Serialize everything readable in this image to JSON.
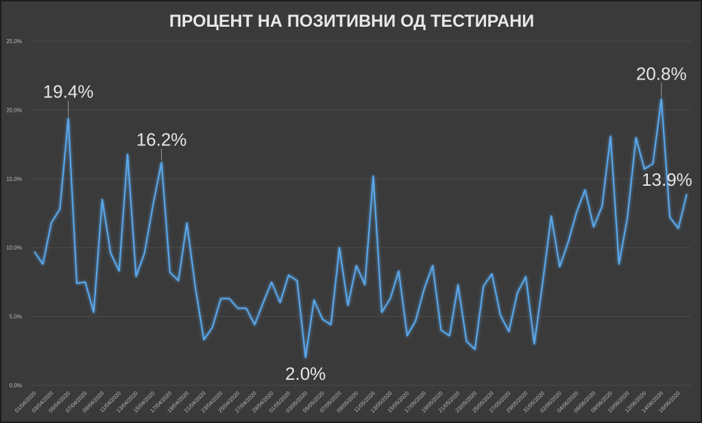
{
  "chart_data": {
    "type": "line",
    "title": "ПРОЦЕНТ НА ПОЗИТИВНИ ОД ТЕСТИРАНИ",
    "xlabel": "",
    "ylabel": "",
    "ylim": [
      0,
      25
    ],
    "yticks": [
      "0.0%",
      "5.0%",
      "10.0%",
      "15.0%",
      "20.0%",
      "25.0%"
    ],
    "grid": true,
    "line_color": "#5aa9ee",
    "x": [
      "01/04/2020",
      "02/04/2020",
      "03/04/2020",
      "04/04/2020",
      "05/04/2020",
      "06/04/2020",
      "07/04/2020",
      "08/04/2020",
      "09/04/2020",
      "10/04/2020",
      "11/04/2020",
      "12/04/2020",
      "13/04/2020",
      "14/04/2020",
      "15/04/2020",
      "16/04/2020",
      "17/04/2020",
      "18/04/2020",
      "19/04/2020",
      "20/04/2020",
      "21/04/2020",
      "22/04/2020",
      "23/04/2020",
      "24/04/2020",
      "25/04/2020",
      "26/04/2020",
      "27/04/2020",
      "28/04/2020",
      "29/04/2020",
      "30/04/2020",
      "01/05/2020",
      "02/05/2020",
      "03/05/2020",
      "04/05/2020",
      "05/05/2020",
      "06/05/2020",
      "07/05/2020",
      "08/05/2020",
      "09/05/2020",
      "10/05/2020",
      "11/05/2020",
      "12/05/2020",
      "13/05/2020",
      "14/05/2020",
      "15/05/2020",
      "16/05/2020",
      "17/05/2020",
      "18/05/2020",
      "19/05/2020",
      "20/05/2020",
      "21/05/2020",
      "22/05/2020",
      "23/05/2020",
      "24/05/2020",
      "25/05/2020",
      "26/05/2020",
      "27/05/2020",
      "28/05/2020",
      "29/05/2020",
      "30/05/2020",
      "31/05/2020",
      "01/06/2020",
      "02/06/2020",
      "03/06/2020",
      "04/06/2020",
      "05/06/2020",
      "06/06/2020",
      "07/06/2020",
      "08/06/2020",
      "09/06/2020",
      "10/06/2020",
      "11/06/2020",
      "12/06/2020",
      "13/06/2020",
      "14/06/2020",
      "15/06/2020",
      "16/06/2020",
      "17/06/2020"
    ],
    "xtick_labels": [
      "01/04/2020",
      "03/04/2020",
      "05/04/2020",
      "07/04/2020",
      "09/04/2020",
      "11/04/2020",
      "13/04/2020",
      "15/04/2020",
      "17/04/2020",
      "19/04/2020",
      "21/04/2020",
      "23/04/2020",
      "25/04/2020",
      "27/04/2020",
      "29/04/2020",
      "01/05/2020",
      "03/05/2020",
      "05/05/2020",
      "07/05/2020",
      "09/05/2020",
      "11/05/2020",
      "13/05/2020",
      "15/05/2020",
      "17/05/2020",
      "19/05/2020",
      "21/05/2020",
      "23/05/2020",
      "25/05/2020",
      "27/05/2020",
      "29/05/2020",
      "31/05/2020",
      "02/06/2020",
      "04/06/2020",
      "06/06/2020",
      "08/06/2020",
      "10/06/2020",
      "12/06/2020",
      "14/06/2020",
      "16/06/2020"
    ],
    "values": [
      9.7,
      8.8,
      11.8,
      12.8,
      19.4,
      7.4,
      7.5,
      5.3,
      13.5,
      9.6,
      8.3,
      16.8,
      7.9,
      9.6,
      13.1,
      16.2,
      8.2,
      7.6,
      11.8,
      7.1,
      3.3,
      4.2,
      6.3,
      6.3,
      5.6,
      5.6,
      4.4,
      6.0,
      7.5,
      6.0,
      8.0,
      7.6,
      2.0,
      6.2,
      4.8,
      4.4,
      10.0,
      5.8,
      8.7,
      7.3,
      15.2,
      5.3,
      6.3,
      8.3,
      3.6,
      4.7,
      7.0,
      8.7,
      4.0,
      3.6,
      7.3,
      3.2,
      2.6,
      7.2,
      8.1,
      5.1,
      3.9,
      6.7,
      7.9,
      3.0,
      7.5,
      12.3,
      8.6,
      10.4,
      12.6,
      14.2,
      11.5,
      13.0,
      18.1,
      8.8,
      12.2,
      18.0,
      15.7,
      16.1,
      20.8,
      12.2,
      11.4,
      13.9
    ],
    "annotations": [
      {
        "index": 4,
        "label": "19.4%"
      },
      {
        "index": 15,
        "label": "16.2%"
      },
      {
        "index": 32,
        "label": "2.0%"
      },
      {
        "index": 74,
        "label": "20.8%"
      },
      {
        "index": 77,
        "label": "13.9%"
      }
    ]
  }
}
